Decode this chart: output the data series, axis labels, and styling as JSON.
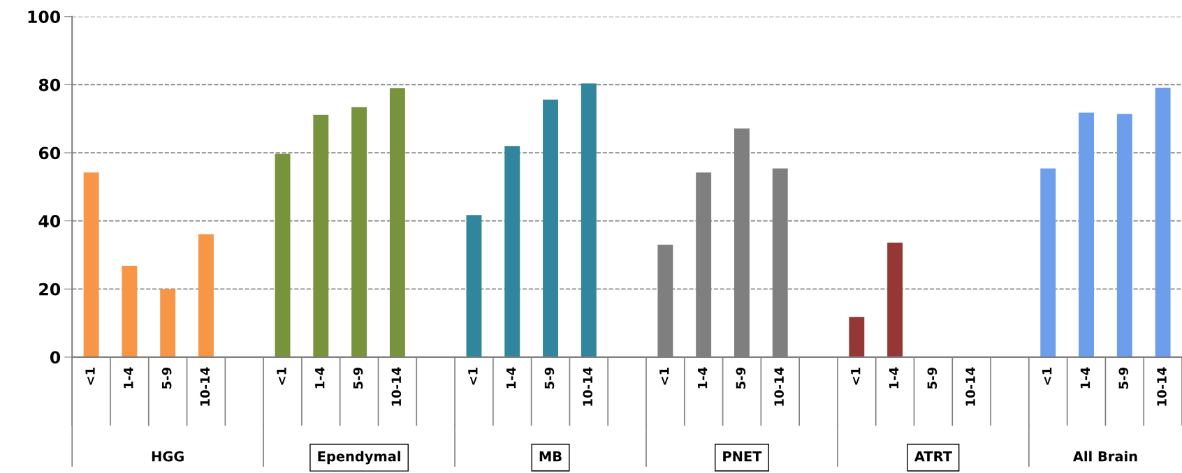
{
  "chart_data": {
    "type": "bar",
    "categories": [
      "<1",
      "1-4",
      "5-9",
      "10-14",
      null,
      "<1",
      "1-4",
      "5-9",
      "10-14",
      null,
      "<1",
      "1-4",
      "5-9",
      "10-14",
      null,
      "<1",
      "1-4",
      "5-9",
      "10-14",
      null,
      "<1",
      "1-4",
      "5-9",
      "10-14",
      null,
      "<1",
      "1-4",
      "5-9",
      "10-14"
    ],
    "values": [
      54.2,
      26.8,
      20,
      36.1,
      null,
      59.7,
      71.1,
      73.4,
      79,
      null,
      41.7,
      62,
      75.6,
      80.4,
      null,
      33,
      54.2,
      67.1,
      55.4,
      null,
      11.8,
      33.6,
      null,
      null,
      null,
      55.4,
      71.8,
      71.4,
      79.1
    ],
    "colors": [
      "#f79646",
      "#f79646",
      "#f79646",
      "#f79646",
      null,
      "#77933c",
      "#77933c",
      "#77933c",
      "#77933c",
      null,
      "#31859c",
      "#31859c",
      "#31859c",
      "#31859c",
      null,
      "#7f7f7f",
      "#7f7f7f",
      "#7f7f7f",
      "#7f7f7f",
      null,
      "#953735",
      "#953735",
      "#953735",
      "#953735",
      null,
      "#6d9eeb",
      "#6d9eeb",
      "#6d9eeb",
      "#6d9eeb"
    ],
    "annotations": [
      "HGG",
      "Ependymal",
      "MB",
      "PNET",
      "ATRT",
      "All Brain"
    ],
    "ylim": [
      0,
      100
    ],
    "yticks": [
      0,
      20,
      40,
      60,
      80,
      100
    ],
    "grid": "y"
  }
}
